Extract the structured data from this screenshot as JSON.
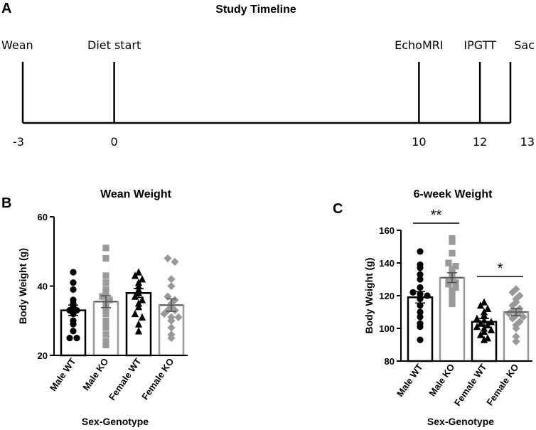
{
  "panels": {
    "a": "A",
    "b": "B",
    "c": "C"
  },
  "timeline": {
    "title": "Study Timeline",
    "axis_unit": "weeks (implied)",
    "events": [
      {
        "label": "Wean",
        "week": -3,
        "tick": "-3"
      },
      {
        "label": "Diet start",
        "week": 0,
        "tick": "0"
      },
      {
        "label": "EchoMRI",
        "week": 10,
        "tick": "10"
      },
      {
        "label": "IPGTT",
        "week": 12,
        "tick": "12"
      },
      {
        "label": "Sac",
        "week": 13,
        "tick": "13"
      }
    ]
  },
  "chart_data": [
    {
      "type": "bar",
      "panel": "B",
      "title": "Wean Weight",
      "xlabel": "Sex-Genotype",
      "ylabel": "Body Weight (g)",
      "ylim": [
        20,
        60
      ],
      "yticks": [
        20,
        40,
        60
      ],
      "categories": [
        "Male WT",
        "Male KO",
        "Female WT",
        "Female KO"
      ],
      "means": [
        33,
        35.5,
        38,
        34.5
      ],
      "sem": [
        1.5,
        1.7,
        1.3,
        1.8
      ],
      "colors": [
        "#000000",
        "#999999",
        "#000000",
        "#999999"
      ],
      "markers": [
        "circle",
        "square",
        "triangle",
        "diamond"
      ],
      "points": [
        [
          44,
          41,
          39,
          36,
          35,
          34,
          33,
          33,
          32,
          30,
          29,
          27,
          25,
          25
        ],
        [
          51,
          48,
          43,
          41,
          39,
          38,
          37,
          36,
          35,
          34,
          33,
          32,
          30,
          29,
          28,
          26,
          24,
          23
        ],
        [
          44,
          43,
          42,
          41,
          40,
          39,
          38,
          37,
          36,
          35,
          34,
          32,
          31,
          29,
          27
        ],
        [
          48,
          47,
          42,
          40,
          37,
          36,
          35,
          34,
          33,
          33,
          32,
          31,
          31,
          30,
          28,
          26,
          25
        ]
      ]
    },
    {
      "type": "bar",
      "panel": "C",
      "title": "6-week Weight",
      "xlabel": "Sex-Genotype",
      "ylabel": "Body Weight (g)",
      "ylim": [
        80,
        160
      ],
      "yticks": [
        80,
        100,
        120,
        140,
        160
      ],
      "categories": [
        "Male WT",
        "Male KO",
        "Female WT",
        "Female KO"
      ],
      "means": [
        119,
        131,
        104,
        110
      ],
      "sem": [
        3.5,
        3,
        2,
        2.2
      ],
      "colors": [
        "#000000",
        "#999999",
        "#000000",
        "#999999"
      ],
      "markers": [
        "circle",
        "square",
        "triangle",
        "diamond"
      ],
      "points": [
        [
          147,
          139,
          137,
          133,
          130,
          125,
          122,
          121,
          120,
          118,
          114,
          110,
          107,
          103,
          101,
          93
        ],
        [
          155,
          153,
          146,
          140,
          138,
          136,
          134,
          131,
          129,
          128,
          127,
          125,
          123,
          120,
          117,
          115
        ],
        [
          116,
          114,
          112,
          110,
          108,
          106,
          105,
          104,
          103,
          102,
          101,
          100,
          99,
          98,
          96,
          94,
          93
        ],
        [
          124,
          122,
          120,
          118,
          116,
          114,
          112,
          111,
          110,
          109,
          108,
          107,
          106,
          104,
          102,
          100,
          95,
          92
        ]
      ],
      "significance": [
        {
          "between": [
            0,
            1
          ],
          "label": "**"
        },
        {
          "between": [
            2,
            3
          ],
          "label": "*"
        }
      ]
    }
  ]
}
